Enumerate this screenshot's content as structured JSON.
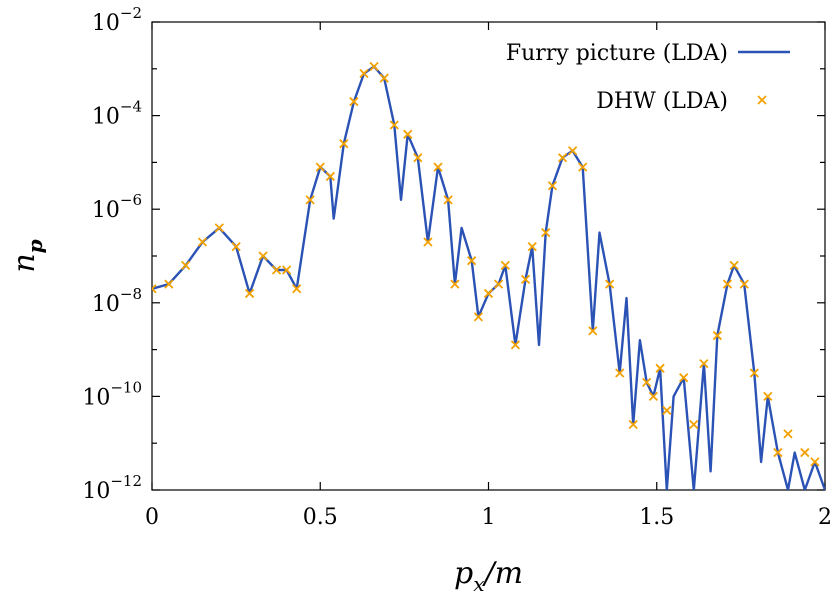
{
  "chart_data": {
    "type": "line",
    "xlabel": "p_x/m",
    "ylabel": "n_p",
    "xlim": [
      0,
      2
    ],
    "ylim_exponent": [
      -12,
      -2
    ],
    "yscale": "log",
    "x_ticks": [
      "0",
      "0.5",
      "1",
      "1.5",
      "2"
    ],
    "y_ticks": [
      {
        "base": "10",
        "exp": "−12"
      },
      {
        "base": "10",
        "exp": "−10"
      },
      {
        "base": "10",
        "exp": "−8"
      },
      {
        "base": "10",
        "exp": "−6"
      },
      {
        "base": "10",
        "exp": "−4"
      },
      {
        "base": "10",
        "exp": "−2"
      }
    ],
    "legend_position": "top-right",
    "series": [
      {
        "name": "Furry picture (LDA)",
        "style": "line",
        "color": "#2b52b5",
        "x": [
          0,
          0.05,
          0.1,
          0.15,
          0.2,
          0.25,
          0.29,
          0.33,
          0.37,
          0.4,
          0.43,
          0.47,
          0.5,
          0.53,
          0.54,
          0.57,
          0.6,
          0.63,
          0.66,
          0.69,
          0.72,
          0.74,
          0.76,
          0.79,
          0.82,
          0.85,
          0.88,
          0.9,
          0.92,
          0.95,
          0.97,
          1.0,
          1.03,
          1.05,
          1.08,
          1.11,
          1.13,
          1.15,
          1.17,
          1.19,
          1.22,
          1.25,
          1.28,
          1.31,
          1.33,
          1.36,
          1.39,
          1.41,
          1.43,
          1.45,
          1.47,
          1.49,
          1.51,
          1.53,
          1.55,
          1.58,
          1.61,
          1.64,
          1.66,
          1.68,
          1.71,
          1.73,
          1.76,
          1.79,
          1.81,
          1.83,
          1.86,
          1.89,
          1.91,
          1.94,
          1.97,
          2.0
        ],
        "y_log10": [
          -7.7,
          -7.6,
          -7.2,
          -6.7,
          -6.4,
          -6.8,
          -7.8,
          -7.0,
          -7.3,
          -7.3,
          -7.7,
          -5.8,
          -5.1,
          -5.3,
          -6.2,
          -4.6,
          -3.7,
          -3.1,
          -2.95,
          -3.2,
          -4.2,
          -5.8,
          -4.4,
          -4.9,
          -6.7,
          -5.1,
          -5.8,
          -7.6,
          -6.4,
          -7.1,
          -8.3,
          -7.8,
          -7.6,
          -7.2,
          -8.9,
          -7.5,
          -6.8,
          -8.9,
          -6.5,
          -5.5,
          -4.9,
          -4.75,
          -5.1,
          -8.6,
          -6.5,
          -7.6,
          -9.5,
          -7.9,
          -10.6,
          -8.8,
          -9.7,
          -10.0,
          -9.4,
          -12.0,
          -10.0,
          -9.6,
          -12.0,
          -9.3,
          -11.6,
          -8.7,
          -7.6,
          -7.2,
          -7.6,
          -9.5,
          -11.4,
          -10.0,
          -11.2,
          -12.0,
          -11.2,
          -12.0,
          -11.4,
          -12.0
        ]
      },
      {
        "name": "DHW (LDA)",
        "style": "marker-x",
        "color": "#f2a100",
        "x": [
          0,
          0.05,
          0.1,
          0.15,
          0.2,
          0.25,
          0.29,
          0.33,
          0.37,
          0.4,
          0.43,
          0.47,
          0.5,
          0.53,
          0.57,
          0.6,
          0.63,
          0.66,
          0.69,
          0.72,
          0.76,
          0.79,
          0.82,
          0.85,
          0.88,
          0.9,
          0.95,
          0.97,
          1.0,
          1.03,
          1.05,
          1.08,
          1.11,
          1.13,
          1.17,
          1.19,
          1.22,
          1.25,
          1.28,
          1.31,
          1.36,
          1.39,
          1.43,
          1.47,
          1.49,
          1.51,
          1.53,
          1.58,
          1.61,
          1.64,
          1.68,
          1.71,
          1.73,
          1.76,
          1.79,
          1.83,
          1.86,
          1.89,
          1.94,
          1.97
        ],
        "y_log10": [
          -7.7,
          -7.6,
          -7.2,
          -6.7,
          -6.4,
          -6.8,
          -7.8,
          -7.0,
          -7.3,
          -7.3,
          -7.7,
          -5.8,
          -5.1,
          -5.3,
          -4.6,
          -3.7,
          -3.1,
          -2.95,
          -3.2,
          -4.2,
          -4.4,
          -4.9,
          -6.7,
          -5.1,
          -5.8,
          -7.6,
          -7.1,
          -8.3,
          -7.8,
          -7.6,
          -7.2,
          -8.9,
          -7.5,
          -6.8,
          -6.5,
          -5.5,
          -4.9,
          -4.75,
          -5.1,
          -8.6,
          -7.6,
          -9.5,
          -10.6,
          -9.7,
          -10.0,
          -9.4,
          -10.3,
          -9.6,
          -10.6,
          -9.3,
          -8.7,
          -7.6,
          -7.2,
          -7.6,
          -9.5,
          -10.0,
          -11.2,
          -10.8,
          -11.2,
          -11.4
        ]
      }
    ]
  }
}
